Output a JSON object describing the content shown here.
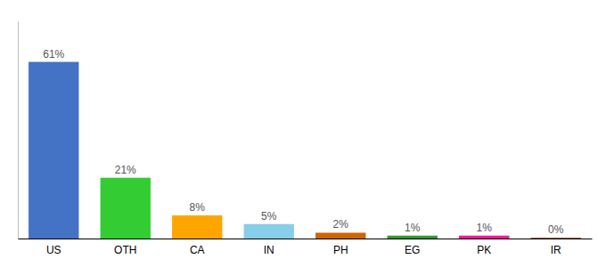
{
  "chart_data": {
    "type": "bar",
    "categories": [
      "US",
      "OTH",
      "CA",
      "IN",
      "PH",
      "EG",
      "PK",
      "IR"
    ],
    "values": [
      61,
      21,
      8,
      5,
      2,
      1,
      1,
      0.3
    ],
    "value_labels": [
      "61%",
      "21%",
      "8%",
      "5%",
      "2%",
      "1%",
      "1%",
      "0%"
    ],
    "colors": [
      "#4472C4",
      "#33CC33",
      "#FFA500",
      "#87CEEB",
      "#CC6600",
      "#339933",
      "#FF1493",
      "#A0522D"
    ],
    "ylim": [
      0,
      75
    ],
    "data_labels": true,
    "tick_labels": "x",
    "grid": false
  }
}
